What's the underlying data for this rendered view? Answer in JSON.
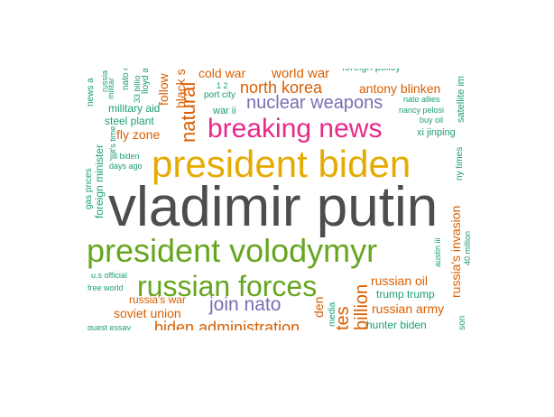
{
  "colors": {
    "gray": "#4d4d4d",
    "orange": "#d95f02",
    "purple": "#7570b3",
    "magenta": "#e7298a",
    "green": "#66a61e",
    "gold": "#e6ab02",
    "brown": "#a6761d",
    "teal": "#1b9e77"
  },
  "words": [
    {
      "text": "vladimir putin",
      "color": "gray"
    },
    {
      "text": "president biden",
      "color": "gold"
    },
    {
      "text": "president volodymyr",
      "color": "green"
    },
    {
      "text": "russian forces",
      "color": "green"
    },
    {
      "text": "breaking news",
      "color": "magenta"
    },
    {
      "text": "nuclear weapons",
      "color": "purple"
    },
    {
      "text": "north korea",
      "color": "orange"
    },
    {
      "text": "join nato",
      "color": "purple"
    },
    {
      "text": "biden administration",
      "color": "orange"
    },
    {
      "text": "soviet union",
      "color": "orange"
    },
    {
      "text": "antony blinken",
      "color": "orange"
    },
    {
      "text": "world war",
      "color": "orange"
    },
    {
      "text": "cold war",
      "color": "orange"
    },
    {
      "text": "fly zone",
      "color": "orange"
    },
    {
      "text": "russian oil",
      "color": "orange"
    },
    {
      "text": "russian army",
      "color": "orange"
    },
    {
      "text": "trump trump",
      "color": "teal"
    },
    {
      "text": "hunter biden",
      "color": "teal"
    },
    {
      "text": "military aid",
      "color": "teal"
    },
    {
      "text": "steel plant",
      "color": "teal"
    },
    {
      "text": "russia's war",
      "color": "orange"
    },
    {
      "text": "xi jinping",
      "color": "teal"
    },
    {
      "text": "foreign policy",
      "color": "teal"
    },
    {
      "text": "natural",
      "color": "orange"
    },
    {
      "text": "black sea",
      "color": "orange"
    },
    {
      "text": "follow",
      "color": "orange"
    },
    {
      "text": "russia's invasion",
      "color": "orange"
    },
    {
      "text": "satellite im",
      "color": "teal"
    },
    {
      "text": "ny times",
      "color": "teal"
    },
    {
      "text": "foreign minister",
      "color": "teal"
    },
    {
      "text": "gas prices",
      "color": "teal"
    },
    {
      "text": "news a",
      "color": "teal"
    },
    {
      "text": "nato allies",
      "color": "teal"
    },
    {
      "text": "nancy pelosi",
      "color": "teal"
    },
    {
      "text": "buy oil",
      "color": "teal"
    },
    {
      "text": "war ii",
      "color": "teal"
    },
    {
      "text": "port city",
      "color": "teal"
    },
    {
      "text": "1 2",
      "color": "teal"
    },
    {
      "text": "jill biden",
      "color": "teal"
    },
    {
      "text": "days ago",
      "color": "teal"
    },
    {
      "text": "it's time",
      "color": "teal"
    },
    {
      "text": "u.s official",
      "color": "teal"
    },
    {
      "text": "free world",
      "color": "teal"
    },
    {
      "text": "guest essay",
      "color": "teal"
    },
    {
      "text": "40 million",
      "color": "teal"
    },
    {
      "text": "austin iii",
      "color": "teal"
    },
    {
      "text": "billion",
      "color": "orange"
    },
    {
      "text": "tes",
      "color": "orange"
    },
    {
      "text": "den",
      "color": "orange"
    },
    {
      "text": "media",
      "color": "teal"
    },
    {
      "text": "nato c",
      "color": "teal"
    },
    {
      "text": "33 billio",
      "color": "teal"
    },
    {
      "text": "lloyd a",
      "color": "teal"
    },
    {
      "text": "russia",
      "color": "teal"
    },
    {
      "text": "militar",
      "color": "teal"
    },
    {
      "text": "lson",
      "color": "teal"
    }
  ]
}
